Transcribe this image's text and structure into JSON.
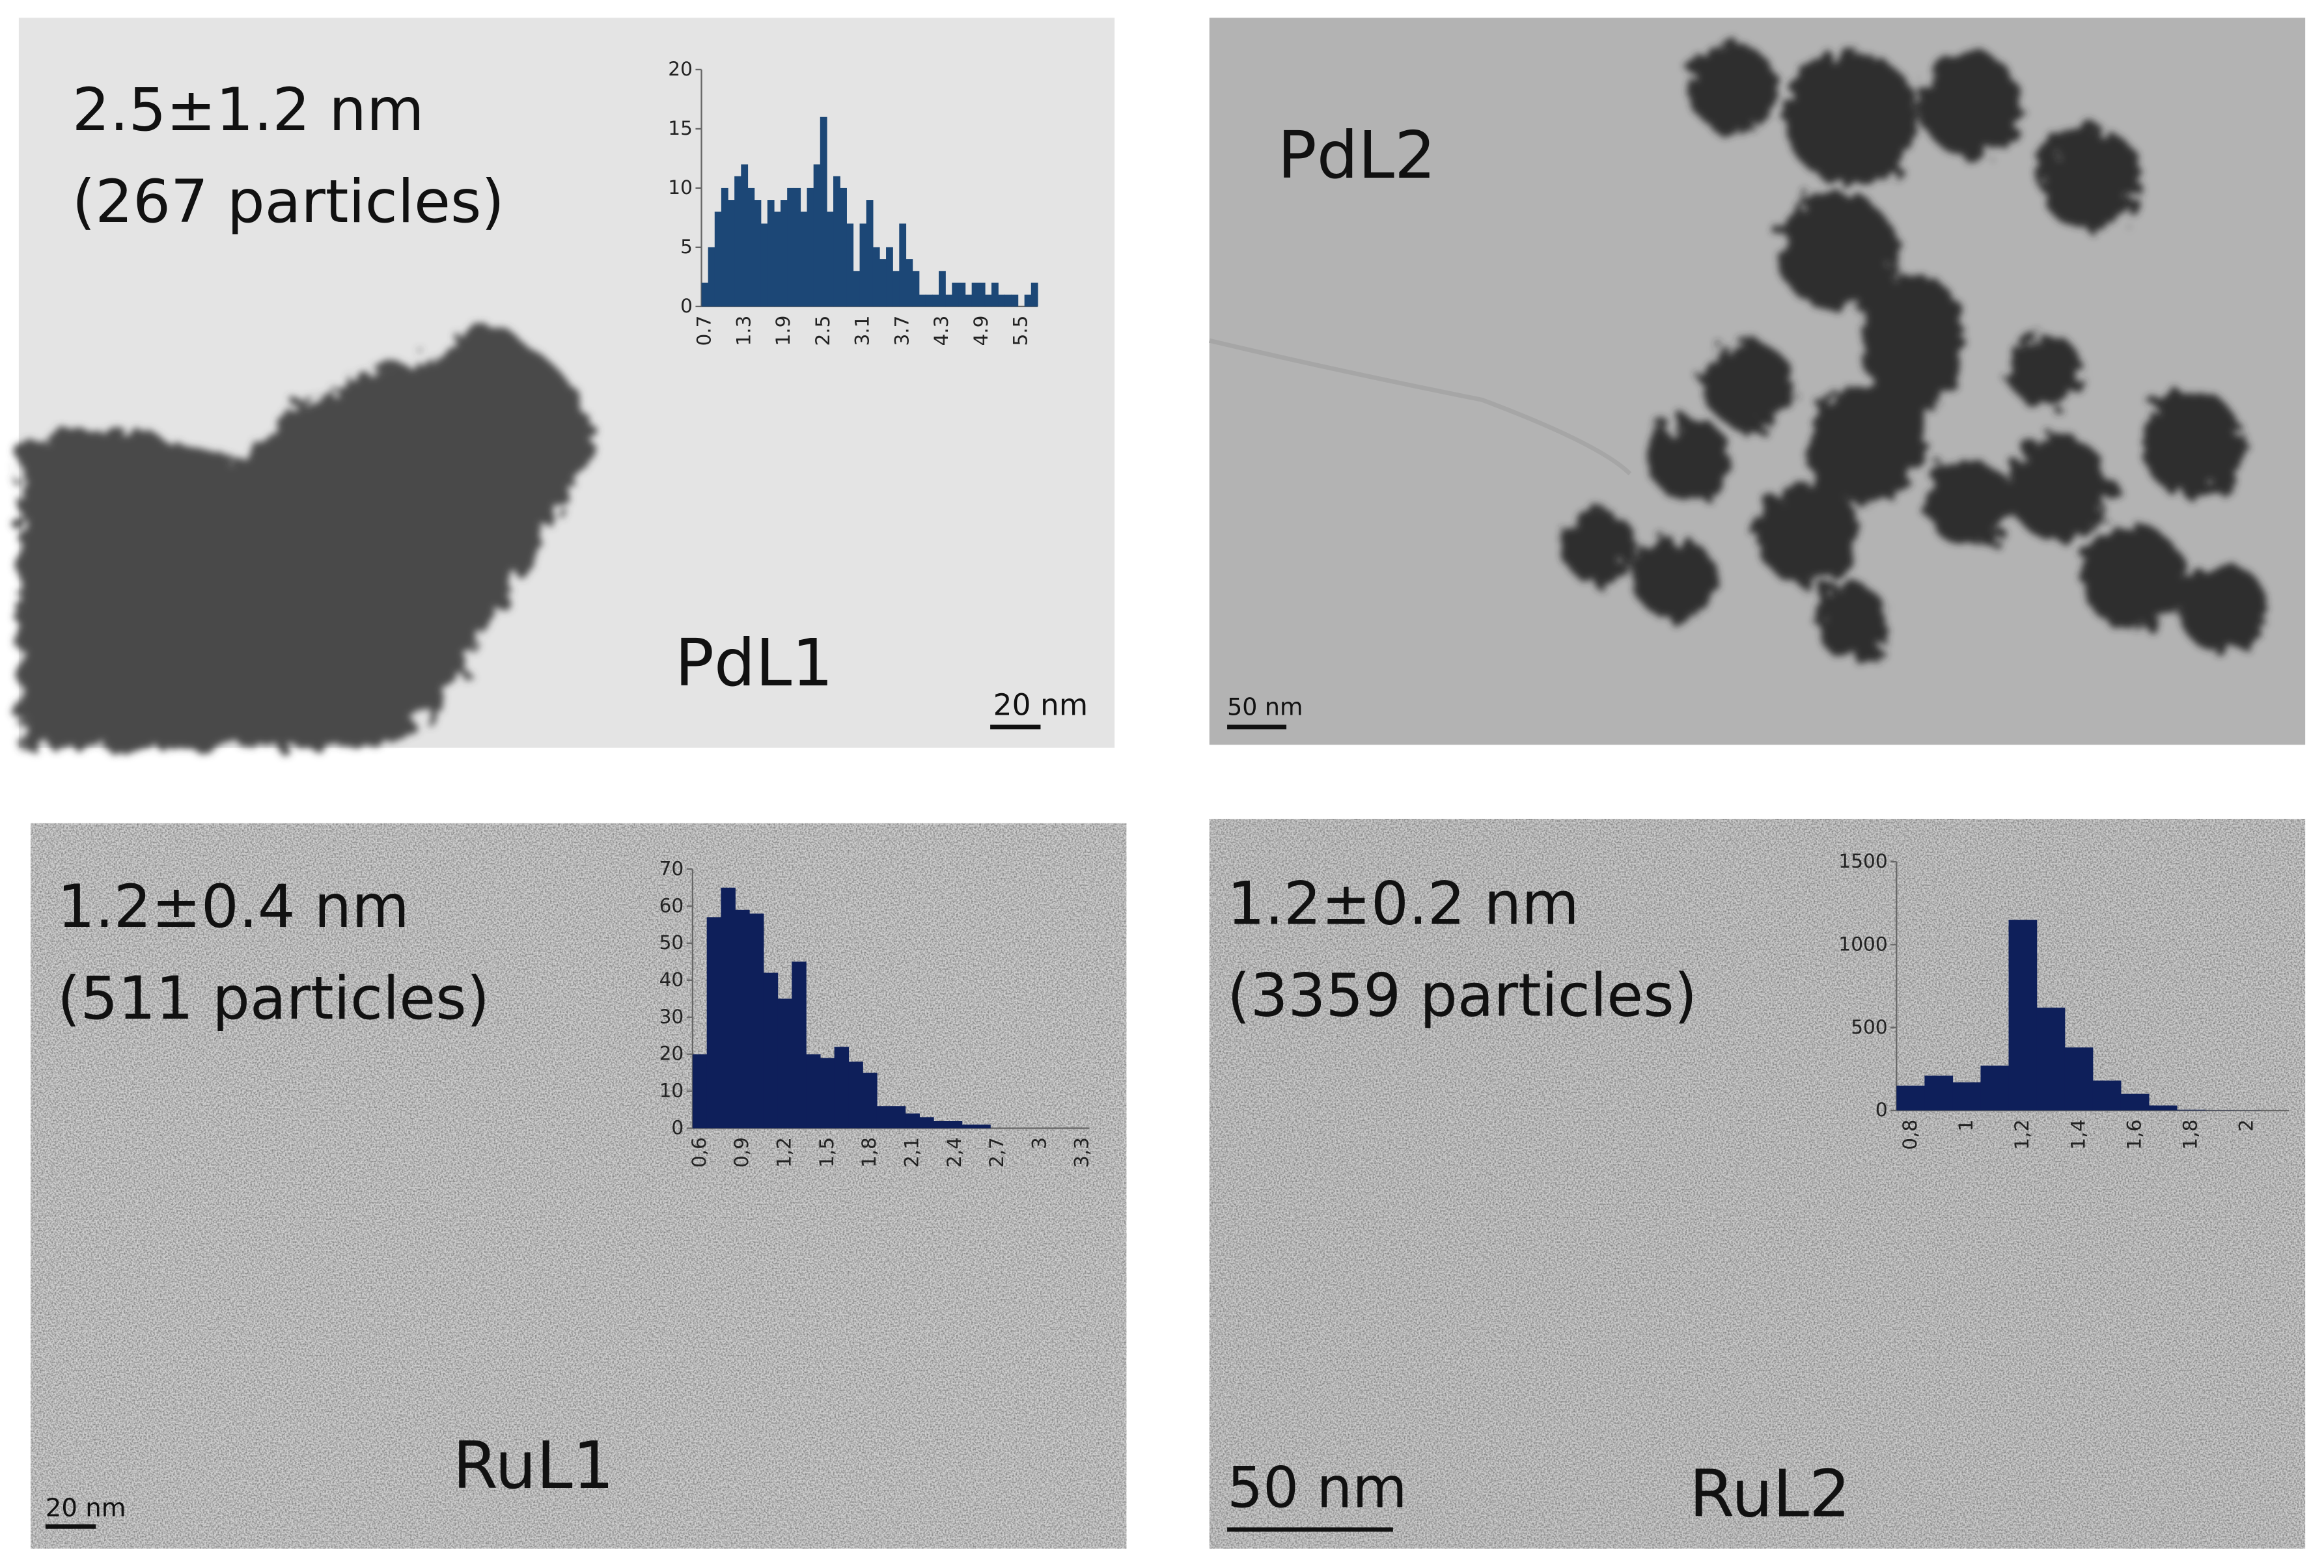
{
  "panels": [
    {
      "label": "PdL1",
      "lines": [
        "2.5±1.2 nm",
        "(267 particles)"
      ],
      "scale": "20 nm"
    },
    {
      "label": "PdL2",
      "scale": "50 nm"
    },
    {
      "label": "RuL1",
      "lines": [
        "1.2±0.4 nm",
        "(511 particles)"
      ],
      "scale": "20 nm"
    },
    {
      "label": "RuL2",
      "lines": [
        "1.2±0.2 nm",
        "(3359 particles)"
      ],
      "scale": "50 nm"
    }
  ],
  "chart_data": [
    {
      "type": "bar",
      "color": "#1c4776",
      "categories": [
        "0.7",
        null,
        null,
        null,
        null,
        null,
        "1.3",
        null,
        null,
        null,
        null,
        null,
        "1.9",
        null,
        null,
        null,
        null,
        null,
        "2.5",
        null,
        null,
        null,
        null,
        null,
        "3.1",
        null,
        null,
        null,
        null,
        null,
        "3.7",
        null,
        null,
        null,
        null,
        null,
        "4.3",
        null,
        null,
        null,
        null,
        null,
        "4.9",
        null,
        null,
        null,
        null,
        null,
        "5.5",
        null,
        null
      ],
      "values": [
        2,
        5,
        8,
        10,
        9,
        11,
        12,
        10,
        9,
        7,
        9,
        8,
        9,
        10,
        10,
        8,
        10,
        12,
        16,
        8,
        11,
        10,
        7,
        3,
        7,
        9,
        5,
        4,
        5,
        3,
        7,
        4,
        3,
        1,
        1,
        1,
        3,
        1,
        2,
        2,
        1,
        2,
        2,
        1,
        2,
        1,
        1,
        1,
        0,
        1,
        2
      ],
      "ylim": [
        0,
        20
      ],
      "yticks": [
        0,
        5,
        10,
        15,
        20
      ]
    },
    {
      "type": "bar",
      "color": "#0e1f5a",
      "categories": [
        "0,6",
        null,
        null,
        "0,9",
        null,
        null,
        "1,2",
        null,
        null,
        "1,5",
        null,
        null,
        "1,8",
        null,
        null,
        "2,1",
        null,
        null,
        "2,4",
        null,
        null,
        "2,7",
        null,
        null,
        "3",
        null,
        null,
        "3,3"
      ],
      "values": [
        20,
        57,
        65,
        59,
        58,
        42,
        35,
        45,
        20,
        19,
        22,
        18,
        15,
        6,
        6,
        4,
        3,
        2,
        2,
        1,
        1,
        0,
        0,
        0,
        0,
        0,
        0,
        0
      ],
      "ylim": [
        0,
        70
      ],
      "yticks": [
        0,
        10,
        20,
        30,
        40,
        50,
        60,
        70
      ]
    },
    {
      "type": "bar",
      "color": "#0e1f5a",
      "categories": [
        "0,8",
        null,
        "1",
        null,
        "1,2",
        null,
        "1,4",
        null,
        "1,6",
        null,
        "1,8",
        null,
        "2",
        null
      ],
      "values": [
        150,
        210,
        170,
        270,
        1150,
        620,
        380,
        180,
        100,
        30,
        5,
        2,
        1,
        0
      ],
      "ylim": [
        0,
        1500
      ],
      "yticks": [
        0,
        500,
        1000,
        1500
      ]
    }
  ]
}
